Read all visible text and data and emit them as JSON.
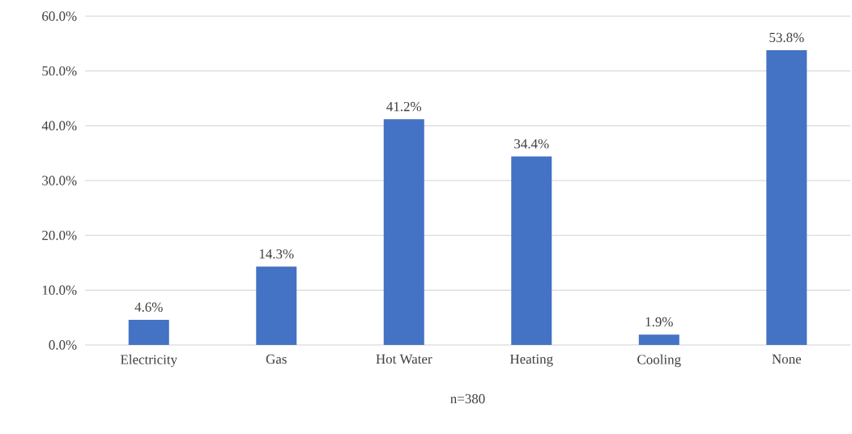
{
  "chart_data": {
    "type": "bar",
    "categories": [
      "Electricity",
      "Gas",
      "Hot Water",
      "Heating",
      "Cooling",
      "None"
    ],
    "values": [
      4.6,
      14.3,
      41.2,
      34.4,
      1.9,
      53.8
    ],
    "value_labels": [
      "4.6%",
      "14.3%",
      "41.2%",
      "34.4%",
      "1.9%",
      "53.8%"
    ],
    "color": "#4472c4",
    "xlabel": "n=380",
    "ylim": [
      0,
      60
    ],
    "yticks": [
      {
        "value": 0,
        "label": "0.0%"
      },
      {
        "value": 10,
        "label": "10.0%"
      },
      {
        "value": 20,
        "label": "20.0%"
      },
      {
        "value": 30,
        "label": "30.0%"
      },
      {
        "value": 40,
        "label": "40.0%"
      },
      {
        "value": 50,
        "label": "50.0%"
      },
      {
        "value": 60,
        "label": "60.0%"
      }
    ],
    "grid": "y"
  }
}
